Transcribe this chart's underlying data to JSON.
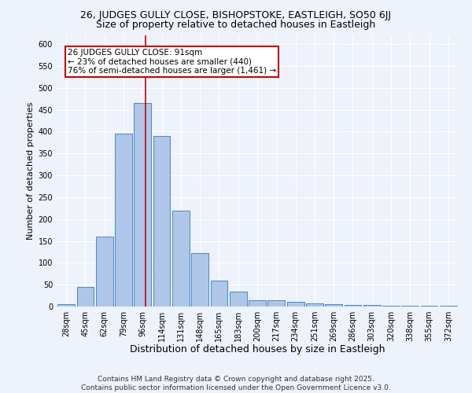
{
  "title1": "26, JUDGES GULLY CLOSE, BISHOPSTOKE, EASTLEIGH, SO50 6JJ",
  "title2": "Size of property relative to detached houses in Eastleigh",
  "xlabel": "Distribution of detached houses by size in Eastleigh",
  "ylabel": "Number of detached properties",
  "categories": [
    "28sqm",
    "45sqm",
    "62sqm",
    "79sqm",
    "96sqm",
    "114sqm",
    "131sqm",
    "148sqm",
    "165sqm",
    "183sqm",
    "200sqm",
    "217sqm",
    "234sqm",
    "251sqm",
    "269sqm",
    "286sqm",
    "303sqm",
    "320sqm",
    "338sqm",
    "355sqm",
    "372sqm"
  ],
  "values": [
    5,
    45,
    160,
    395,
    465,
    390,
    220,
    122,
    60,
    35,
    15,
    15,
    10,
    7,
    5,
    3,
    3,
    2,
    1,
    1,
    1
  ],
  "bar_color": "#aec6e8",
  "bar_edge_color": "#4a86c8",
  "vline_color": "#cc0000",
  "annotation_text": "26 JUDGES GULLY CLOSE: 91sqm\n← 23% of detached houses are smaller (440)\n76% of semi-detached houses are larger (1,461) →",
  "annotation_box_color": "#ffffff",
  "annotation_edge_color": "#cc0000",
  "ylim": [
    0,
    620
  ],
  "yticks": [
    0,
    50,
    100,
    150,
    200,
    250,
    300,
    350,
    400,
    450,
    500,
    550,
    600
  ],
  "background_color": "#eef2fa",
  "grid_color": "#ffffff",
  "footer": "Contains HM Land Registry data © Crown copyright and database right 2025.\nContains public sector information licensed under the Open Government Licence v3.0.",
  "title1_fontsize": 9,
  "title2_fontsize": 9,
  "xlabel_fontsize": 9,
  "ylabel_fontsize": 8,
  "tick_fontsize": 7,
  "annotation_fontsize": 7.5,
  "footer_fontsize": 6.5
}
